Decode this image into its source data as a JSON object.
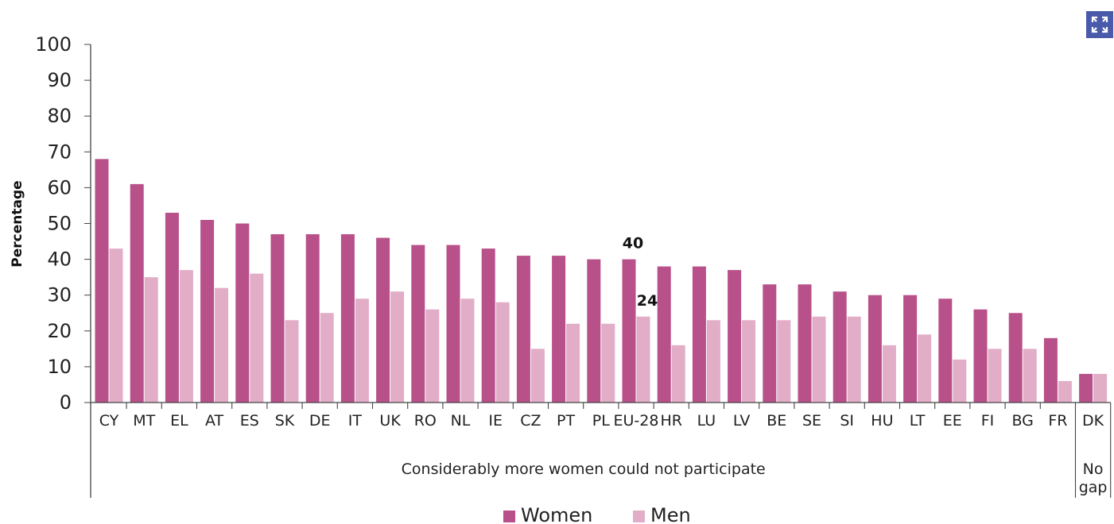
{
  "colors": {
    "women": "#b8508a",
    "men": "#e2adc7",
    "expand_button": "#4a5aab"
  },
  "icons": {
    "expand": "expand-icon"
  },
  "chart_data": {
    "type": "bar",
    "ylabel": "Percentage",
    "ylim": [
      0,
      100
    ],
    "yticks": [
      0,
      10,
      20,
      30,
      40,
      50,
      60,
      70,
      80,
      90,
      100
    ],
    "grid": false,
    "legend": "bottom-center",
    "categories": [
      "CY",
      "MT",
      "EL",
      "AT",
      "ES",
      "SK",
      "DE",
      "IT",
      "UK",
      "RO",
      "NL",
      "IE",
      "CZ",
      "PT",
      "PL",
      "EU-28",
      "HR",
      "LU",
      "LV",
      "BE",
      "SE",
      "SI",
      "HU",
      "LT",
      "EE",
      "FI",
      "BG",
      "FR",
      "DK"
    ],
    "series": [
      {
        "name": "Women",
        "values": [
          68,
          61,
          53,
          51,
          50,
          47,
          47,
          47,
          46,
          44,
          44,
          43,
          41,
          41,
          40,
          40,
          38,
          38,
          37,
          33,
          33,
          31,
          30,
          30,
          29,
          26,
          25,
          18,
          8
        ]
      },
      {
        "name": "Men",
        "values": [
          43,
          35,
          37,
          32,
          36,
          23,
          25,
          29,
          31,
          26,
          29,
          28,
          15,
          22,
          22,
          24,
          16,
          23,
          23,
          23,
          24,
          24,
          16,
          19,
          12,
          15,
          15,
          6,
          8
        ]
      }
    ],
    "annotations": [
      {
        "category": "EU-28",
        "series": "Women",
        "text": "40"
      },
      {
        "category": "EU-28",
        "series": "Men",
        "text": "24"
      }
    ],
    "groups": [
      {
        "label": "Considerably more women could not participate",
        "from": "CY",
        "to": "FR"
      },
      {
        "label_lines": [
          "No",
          "gap"
        ],
        "from": "DK",
        "to": "DK"
      }
    ]
  }
}
